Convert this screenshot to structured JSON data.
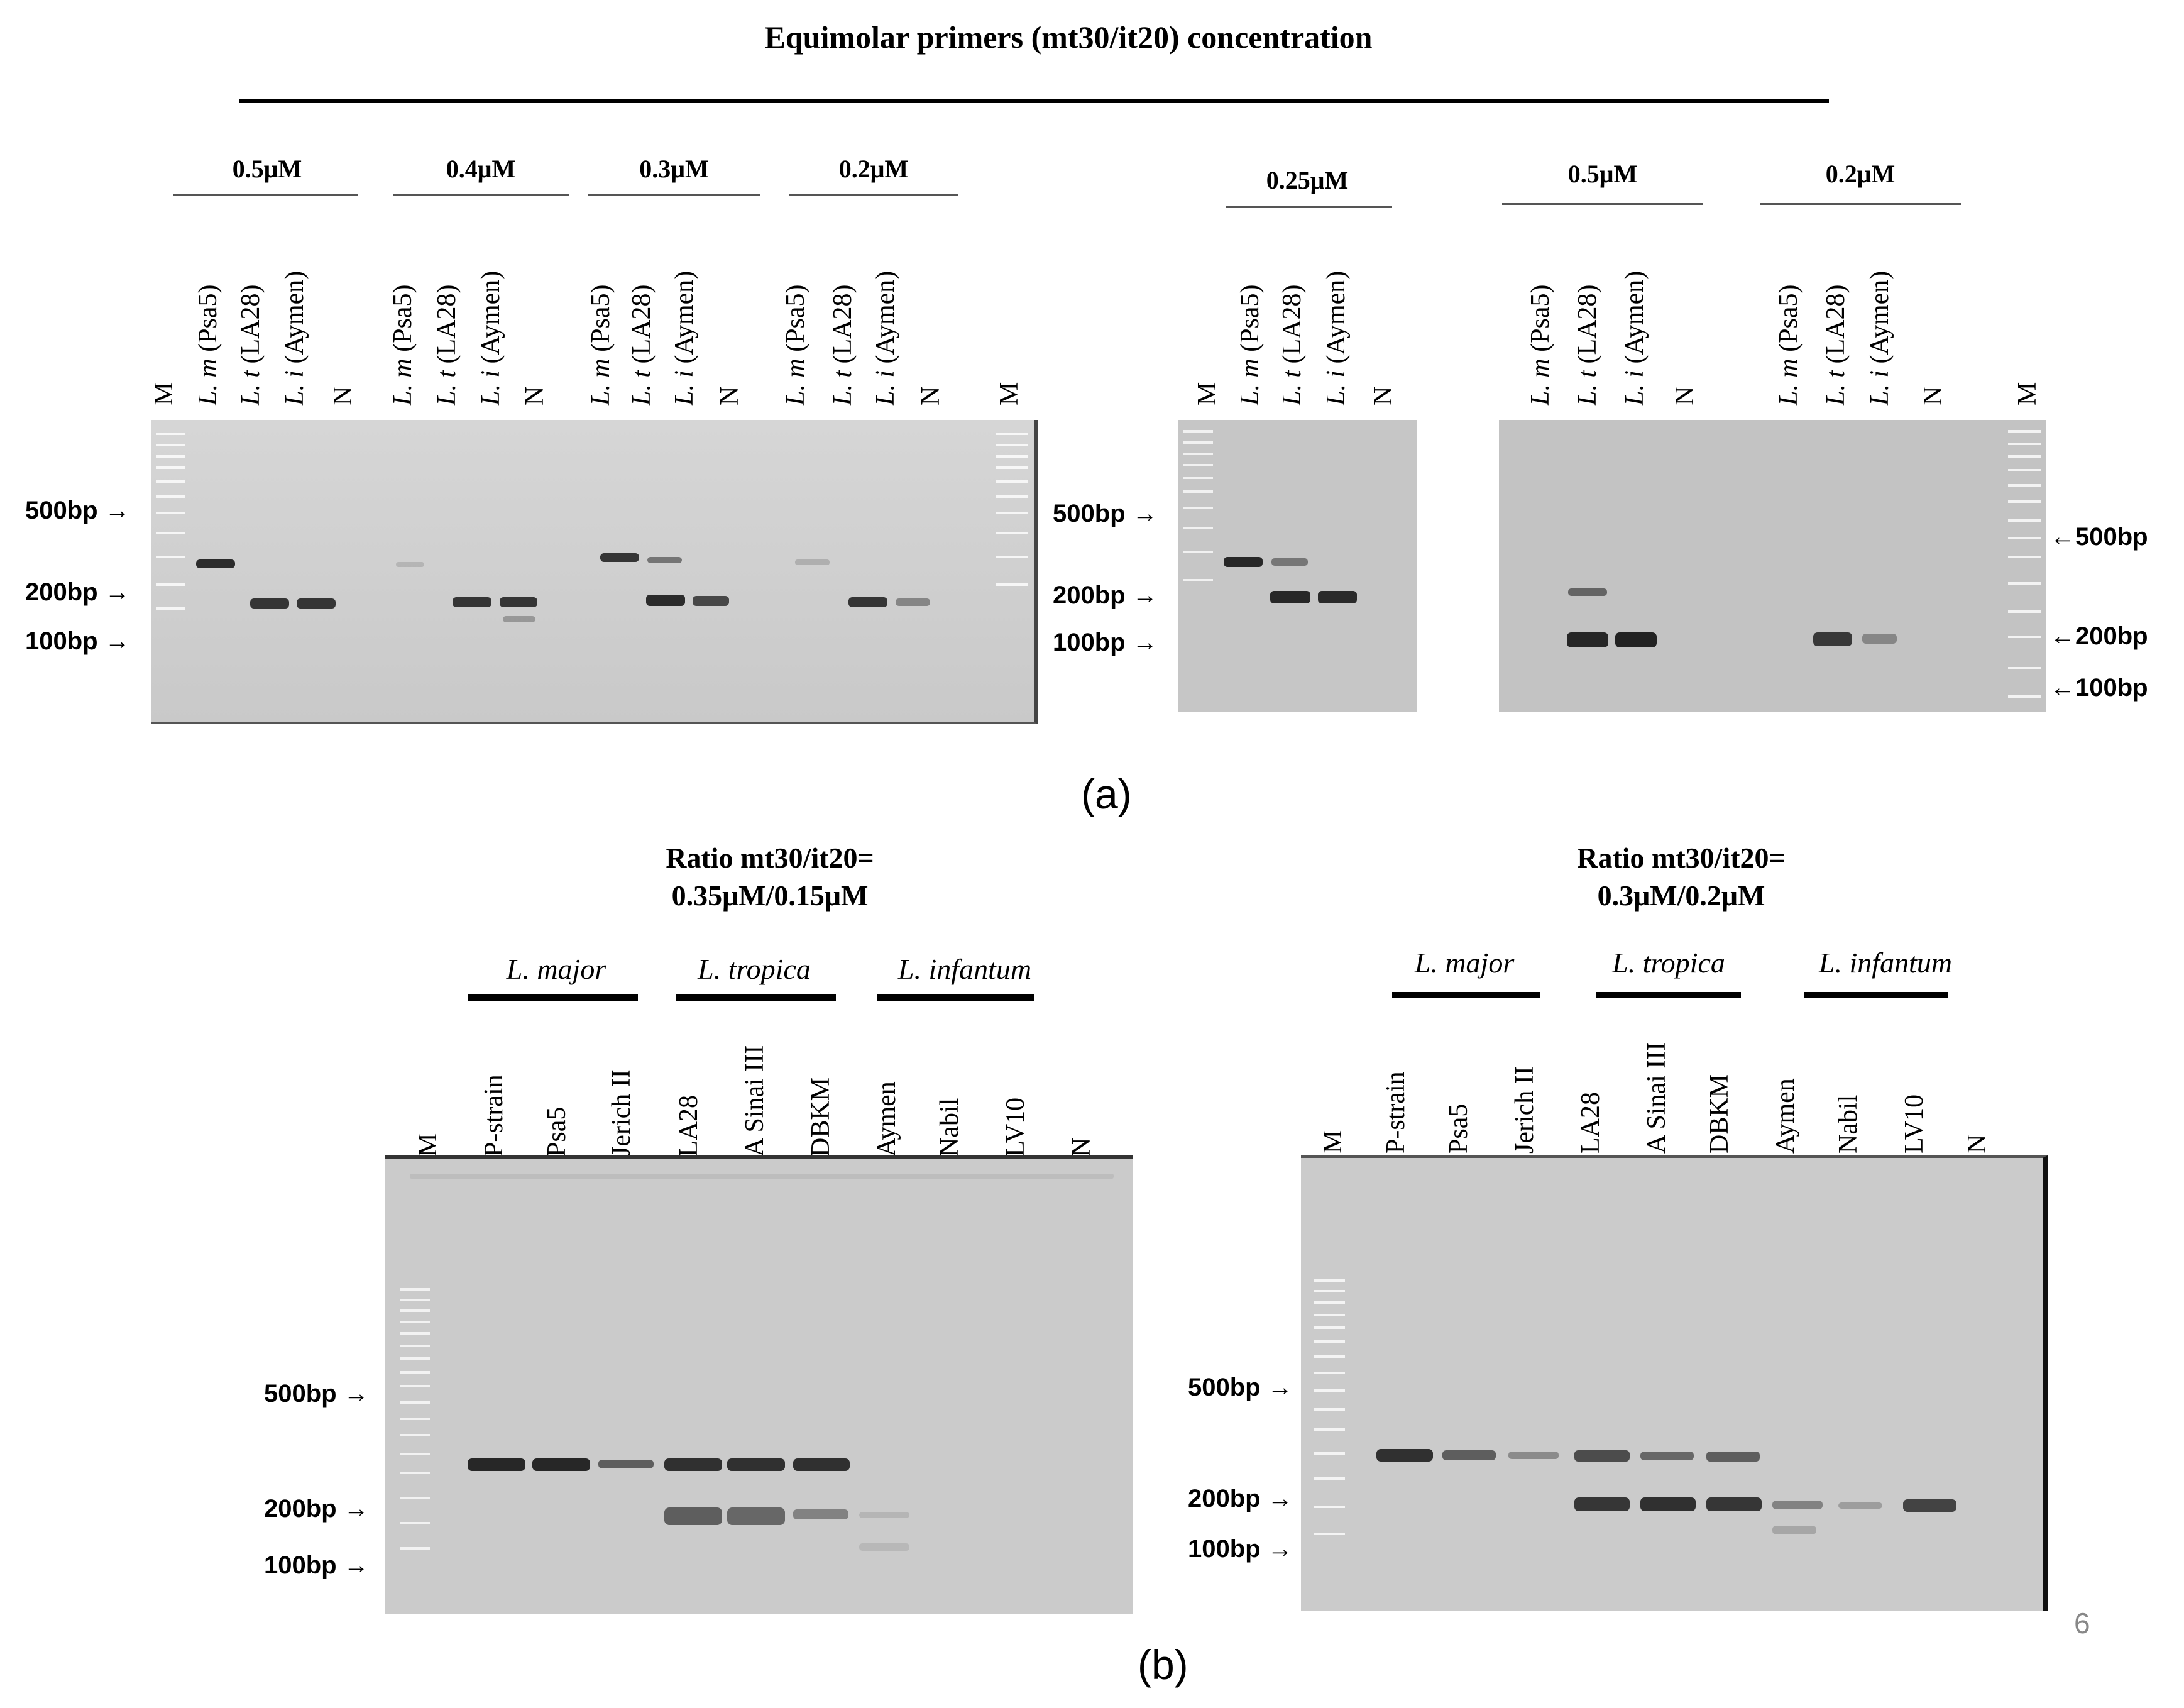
{
  "panel_a": {
    "title": "Equimolar primers (mt30/it20) concentration",
    "label": "(a)",
    "gel1": {
      "concentrations": [
        "0.5μM",
        "0.4μM",
        "0.3μM",
        "0.2μM"
      ],
      "lane_labels": [
        "M",
        "L. m (Psa5)",
        "L. t (LA28)",
        "L. i (Aymen)",
        "N",
        "L. m (Psa5)",
        "L. t (LA28)",
        "L. i (Aymen)",
        "N",
        "L. m (Psa5)",
        "L. t (LA28)",
        "L. i (Aymen)",
        "N",
        "L. m (Psa5)",
        "L. t (LA28)",
        "L. i (Aymen)",
        "N",
        "M"
      ],
      "markers": [
        "500bp",
        "200bp",
        "100bp"
      ]
    },
    "gel2": {
      "concentrations": [
        "0.25μM"
      ],
      "lane_labels": [
        "M",
        "L. m (Psa5)",
        "L. t (LA28)",
        "L. i (Aymen)",
        "N"
      ],
      "markers": [
        "500bp",
        "200bp",
        "100bp"
      ]
    },
    "gel3": {
      "concentrations": [
        "0.5μM",
        "0.2μM"
      ],
      "lane_labels": [
        "L. m (Psa5)",
        "L. t (LA28)",
        "L. i (Aymen)",
        "N",
        "L. m (Psa5)",
        "L. t (LA28)",
        "L. i (Aymen)",
        "N",
        "M"
      ],
      "markers": [
        "500bp",
        "200bp",
        "100bp"
      ]
    }
  },
  "panel_b": {
    "label": "(b)",
    "gel_left": {
      "ratio_line1": "Ratio mt30/it20=",
      "ratio_line2": "0.35μM/0.15μM",
      "species": [
        "L. major",
        "L. tropica",
        "L. infantum"
      ],
      "lane_labels": [
        "M",
        "P-strain",
        "Psa5",
        "Jerich II",
        "LA28",
        "A Sinai III",
        "DBKM",
        "Aymen",
        "Nabil",
        "LV10",
        "N"
      ],
      "markers": [
        "500bp",
        "200bp",
        "100bp"
      ]
    },
    "gel_right": {
      "ratio_line1": "Ratio mt30/it20=",
      "ratio_line2": "0.3μM/0.2μM",
      "species": [
        "L. major",
        "L. tropica",
        "L. infantum"
      ],
      "lane_labels": [
        "M",
        "P-strain",
        "Psa5",
        "Jerich II",
        "LA28",
        "A Sinai III",
        "DBKM",
        "Aymen",
        "Nabil",
        "LV10",
        "N"
      ],
      "markers": [
        "500bp",
        "200bp",
        "100bp"
      ]
    }
  },
  "page_number": "6"
}
